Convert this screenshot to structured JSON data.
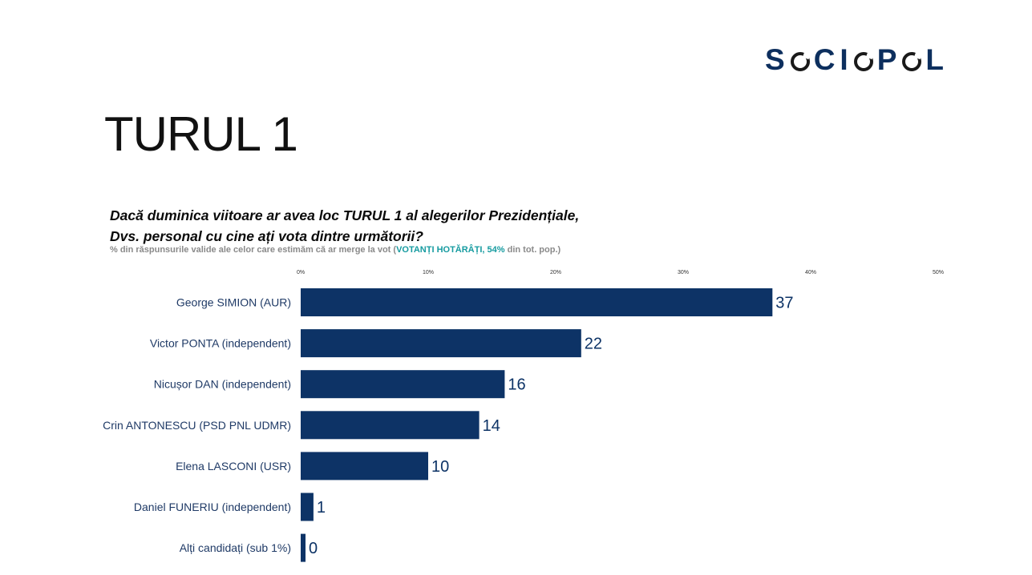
{
  "header": {
    "logo_text": "SOCIOPOL",
    "logo_parts": [
      "S",
      "C",
      "I",
      "P",
      "L"
    ]
  },
  "slide": {
    "title": "TURUL 1",
    "question_line1": "Dacă duminica viitoare ar avea loc TURUL 1 al alegerilor Prezidențiale,",
    "question_line2": "Dvs. personal cu cine ați vota dintre următorii?",
    "subtitle_pre": "% din răspunsurile valide ale celor care estimăm că ar merge la vot (",
    "subtitle_highlight": "VOTANȚI HOTĂRÂȚI, 54%",
    "subtitle_post": " din tot. pop.)"
  },
  "colors": {
    "bar": "#0d3366",
    "value_text": "#0d3366",
    "label_text": "#1f3a66",
    "tick_text": "#333333",
    "highlight": "#169ba0",
    "logo": "#0d2f5e"
  },
  "chart_data": {
    "type": "bar",
    "orientation": "horizontal",
    "categories": [
      "George SIMION (AUR)",
      "Victor PONTA (independent)",
      "Nicușor DAN (independent)",
      "Crin ANTONESCU (PSD PNL UDMR)",
      "Elena LASCONI (USR)",
      "Daniel FUNERIU (independent)",
      "Alți candidați (sub 1%)"
    ],
    "values": [
      37,
      22,
      16,
      14,
      10,
      1,
      0
    ],
    "value_labels": [
      "37",
      "22",
      "16",
      "14",
      "10",
      "1",
      "0"
    ],
    "xlim": [
      0,
      50
    ],
    "x_ticks": [
      0,
      10,
      20,
      30,
      40,
      50
    ],
    "x_tick_labels": [
      "0%",
      "10%",
      "20%",
      "30%",
      "40%",
      "50%"
    ],
    "x_axis_position": "top",
    "grid": false,
    "legend": "none"
  }
}
